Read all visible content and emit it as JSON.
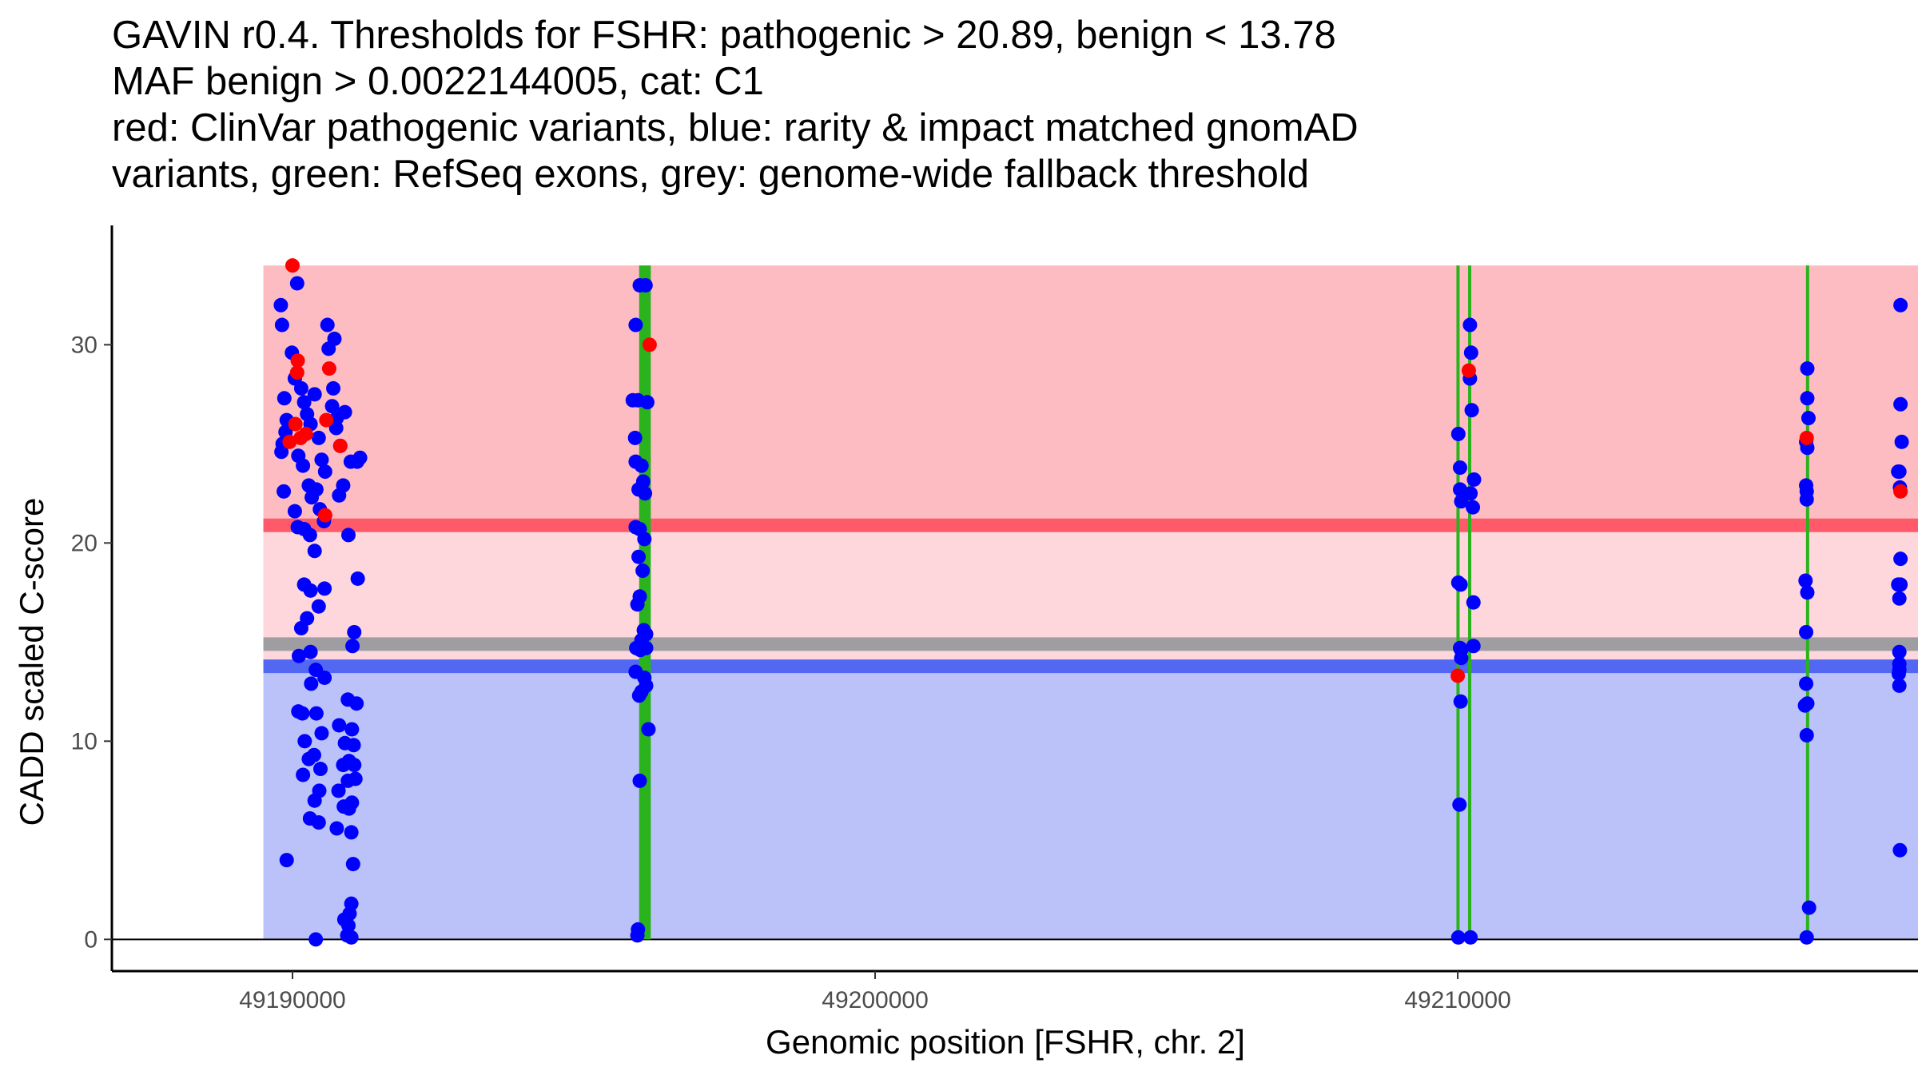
{
  "chart_data": {
    "type": "scatter",
    "title_lines": [
      "GAVIN r0.4. Thresholds for FSHR: pathogenic > 20.89, benign < 13.78",
      "MAF benign > 0.0022144005, cat: C1",
      "red: ClinVar pathogenic variants, blue: rarity & impact matched gnomAD",
      "variants, green: RefSeq exons, grey: genome-wide fallback threshold"
    ],
    "xlabel": "Genomic position [FSHR, chr. 2]",
    "ylabel": "CADD scaled C-score",
    "xlim": [
      49186900,
      49217900
    ],
    "ylim": [
      -1.6,
      35.7
    ],
    "x_ticks": [
      49190000,
      49200000,
      49210000
    ],
    "x_tick_labels": [
      "49190000",
      "49200000",
      "49210000"
    ],
    "y_ticks": [
      0,
      10,
      20,
      30
    ],
    "y_tick_labels": [
      "0",
      "10",
      "20",
      "30"
    ],
    "thresholds": {
      "pathogenic": 20.89,
      "benign": 13.78,
      "genome_wide_fallback": 14.9,
      "max_score": 34,
      "min_score": 0
    },
    "colors": {
      "pathogenic_region": "#fcbcc2",
      "middle_region": "#fdd7dc",
      "benign_region": "#bbc2f9",
      "pathogenic_line": "#ff5a6a",
      "benign_line": "#5268f2",
      "fallback_line": "#9e9ea2",
      "exon": "#2ab31c",
      "clinvar": "#ff0000",
      "gnomad": "#0000ff"
    },
    "exons": [
      {
        "start": 49195950,
        "end": 49196150
      },
      {
        "start": 49210000,
        "end": 49210010
      },
      {
        "start": 49210200,
        "end": 49210210
      },
      {
        "start": 49216000,
        "end": 49216010
      }
    ],
    "series": [
      {
        "name": "gnomAD variants",
        "color": "#0000ff",
        "points": [
          [
            49189800,
            32
          ],
          [
            49189820,
            31
          ],
          [
            49189860,
            27.3
          ],
          [
            49189900,
            26.2
          ],
          [
            49189880,
            25.6
          ],
          [
            49189830,
            25
          ],
          [
            49189810,
            24.6
          ],
          [
            49189850,
            22.6
          ],
          [
            49189990,
            29.6
          ],
          [
            49190040,
            28.3
          ],
          [
            49190080,
            33.1
          ],
          [
            49190150,
            27.8
          ],
          [
            49190200,
            27.1
          ],
          [
            49190250,
            26.5
          ],
          [
            49190310,
            26
          ],
          [
            49190380,
            27.5
          ],
          [
            49190450,
            25.3
          ],
          [
            49190500,
            24.2
          ],
          [
            49190560,
            23.6
          ],
          [
            49190620,
            29.8
          ],
          [
            49190680,
            26.9
          ],
          [
            49190750,
            25.8
          ],
          [
            49190820,
            24.9
          ],
          [
            49190900,
            26.6
          ],
          [
            49191000,
            24.1
          ],
          [
            49190100,
            24.4
          ],
          [
            49190180,
            23.9
          ],
          [
            49190280,
            22.9
          ],
          [
            49190330,
            22.3
          ],
          [
            49190410,
            22.7
          ],
          [
            49190470,
            21.7
          ],
          [
            49190540,
            21.1
          ],
          [
            49190040,
            21.6
          ],
          [
            49190090,
            20.8
          ],
          [
            49190200,
            20.7
          ],
          [
            49190300,
            20.4
          ],
          [
            49190380,
            19.6
          ],
          [
            49190800,
            22.4
          ],
          [
            49190870,
            22.9
          ],
          [
            49191160,
            24.3
          ],
          [
            49191110,
            24.1
          ],
          [
            49190700,
            27.8
          ],
          [
            49190760,
            26.3
          ],
          [
            49190600,
            31
          ],
          [
            49190720,
            30.3
          ],
          [
            49190960,
            20.4
          ],
          [
            49190200,
            17.9
          ],
          [
            49190310,
            17.6
          ],
          [
            49190550,
            17.7
          ],
          [
            49190450,
            16.8
          ],
          [
            49190250,
            16.2
          ],
          [
            49190150,
            15.7
          ],
          [
            49190110,
            14.3
          ],
          [
            49190310,
            14.5
          ],
          [
            49190400,
            13.6
          ],
          [
            49190550,
            13.2
          ],
          [
            49190320,
            12.9
          ],
          [
            49190100,
            11.5
          ],
          [
            49190170,
            11.4
          ],
          [
            49190410,
            11.4
          ],
          [
            49190210,
            10
          ],
          [
            49190500,
            10.4
          ],
          [
            49190370,
            9.3
          ],
          [
            49190280,
            9.1
          ],
          [
            49190180,
            8.3
          ],
          [
            49190480,
            8.6
          ],
          [
            49190380,
            7
          ],
          [
            49190460,
            7.5
          ],
          [
            49190300,
            6.1
          ],
          [
            49190450,
            5.9
          ],
          [
            49189900,
            4
          ],
          [
            49190400,
            0
          ],
          [
            49190950,
            12.1
          ],
          [
            49191100,
            11.9
          ],
          [
            49190800,
            10.8
          ],
          [
            49191020,
            10.6
          ],
          [
            49190900,
            9.9
          ],
          [
            49191050,
            9.8
          ],
          [
            49190970,
            9
          ],
          [
            49190870,
            8.8
          ],
          [
            49191060,
            8.8
          ],
          [
            49190950,
            8
          ],
          [
            49191080,
            8.1
          ],
          [
            49190790,
            7.5
          ],
          [
            49191020,
            6.9
          ],
          [
            49190880,
            6.7
          ],
          [
            49190970,
            6.6
          ],
          [
            49190760,
            5.6
          ],
          [
            49191010,
            5.4
          ],
          [
            49191040,
            3.8
          ],
          [
            49191120,
            18.2
          ],
          [
            49191060,
            15.5
          ],
          [
            49191030,
            14.8
          ],
          [
            49191010,
            1.8
          ],
          [
            49190980,
            1.3
          ],
          [
            49190890,
            1
          ],
          [
            49190960,
            0.7
          ],
          [
            49190940,
            0.2
          ],
          [
            49191010,
            0.1
          ],
          [
            49195890,
            31
          ],
          [
            49195960,
            33
          ],
          [
            49196060,
            33
          ],
          [
            49195840,
            27.2
          ],
          [
            49195930,
            27.2
          ],
          [
            49196090,
            27.1
          ],
          [
            49195880,
            25.3
          ],
          [
            49195890,
            24.1
          ],
          [
            49195990,
            23.9
          ],
          [
            49196020,
            23.1
          ],
          [
            49195940,
            22.7
          ],
          [
            49196050,
            22.5
          ],
          [
            49195890,
            20.8
          ],
          [
            49195960,
            20.7
          ],
          [
            49196040,
            20.2
          ],
          [
            49195940,
            19.3
          ],
          [
            49196010,
            18.6
          ],
          [
            49195960,
            17.3
          ],
          [
            49195920,
            16.9
          ],
          [
            49196030,
            15.6
          ],
          [
            49196070,
            15.4
          ],
          [
            49195990,
            15.1
          ],
          [
            49195900,
            14.7
          ],
          [
            49195970,
            14.6
          ],
          [
            49196070,
            14.7
          ],
          [
            49195890,
            13.5
          ],
          [
            49196040,
            13.2
          ],
          [
            49196070,
            12.8
          ],
          [
            49195990,
            12.5
          ],
          [
            49195950,
            12.3
          ],
          [
            49196110,
            10.6
          ],
          [
            49195960,
            8
          ],
          [
            49195930,
            0.5
          ],
          [
            49195920,
            0.2
          ],
          [
            49210010,
            25.5
          ],
          [
            49210040,
            23.8
          ],
          [
            49210040,
            22.7
          ],
          [
            49210060,
            22.1
          ],
          [
            49210210,
            31
          ],
          [
            49210230,
            29.6
          ],
          [
            49210210,
            28.3
          ],
          [
            49210240,
            26.7
          ],
          [
            49210280,
            23.2
          ],
          [
            49210220,
            22.5
          ],
          [
            49210260,
            21.8
          ],
          [
            49210010,
            18
          ],
          [
            49210050,
            17.9
          ],
          [
            49210270,
            17
          ],
          [
            49210040,
            14.7
          ],
          [
            49210060,
            14.6
          ],
          [
            49210060,
            14.2
          ],
          [
            49210270,
            14.8
          ],
          [
            49210050,
            12
          ],
          [
            49210030,
            6.8
          ],
          [
            49210010,
            0.1
          ],
          [
            49210220,
            0.1
          ],
          [
            49216000,
            28.8
          ],
          [
            49216000,
            27.3
          ],
          [
            49216020,
            26.3
          ],
          [
            49215980,
            25.1
          ],
          [
            49216000,
            24.8
          ],
          [
            49215980,
            22.9
          ],
          [
            49215990,
            22.6
          ],
          [
            49215990,
            22.2
          ],
          [
            49215970,
            18.1
          ],
          [
            49216000,
            17.5
          ],
          [
            49215980,
            15.5
          ],
          [
            49215980,
            12.9
          ],
          [
            49216000,
            11.9
          ],
          [
            49215960,
            11.8
          ],
          [
            49215990,
            10.3
          ],
          [
            49216030,
            1.6
          ],
          [
            49215990,
            0.1
          ],
          [
            49217600,
            32
          ],
          [
            49217600,
            27
          ],
          [
            49217620,
            25.1
          ],
          [
            49217580,
            23.6
          ],
          [
            49217560,
            23.6
          ],
          [
            49217590,
            22.8
          ],
          [
            49217600,
            19.2
          ],
          [
            49217600,
            17.9
          ],
          [
            49217560,
            17.9
          ],
          [
            49217580,
            17.2
          ],
          [
            49217580,
            14.5
          ],
          [
            49217580,
            13.9
          ],
          [
            49217580,
            13.6
          ],
          [
            49217570,
            13.4
          ],
          [
            49217580,
            12.8
          ],
          [
            49217590,
            4.5
          ]
        ]
      },
      {
        "name": "ClinVar pathogenic variants",
        "color": "#ff0000",
        "points": [
          [
            49190000,
            34
          ],
          [
            49190090,
            29.2
          ],
          [
            49190080,
            28.6
          ],
          [
            49190630,
            28.8
          ],
          [
            49190580,
            26.2
          ],
          [
            49190050,
            26
          ],
          [
            49190230,
            25.5
          ],
          [
            49190140,
            25.3
          ],
          [
            49189950,
            25.1
          ],
          [
            49190820,
            24.9
          ],
          [
            49190560,
            21.4
          ],
          [
            49196130,
            30
          ],
          [
            49210190,
            28.7
          ],
          [
            49210000,
            13.3
          ],
          [
            49215990,
            25.3
          ],
          [
            49217600,
            22.6
          ]
        ]
      }
    ]
  }
}
